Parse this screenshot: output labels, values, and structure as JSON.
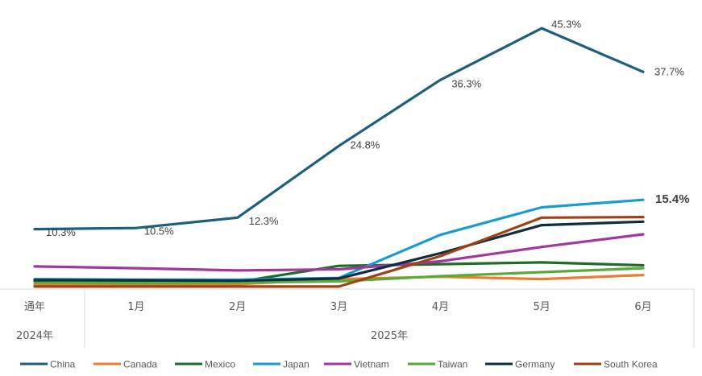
{
  "chart_data": {
    "type": "line",
    "title": "",
    "xlabel": "",
    "ylabel": "",
    "categories": [
      "通年",
      "1月",
      "2月",
      "3月",
      "4月",
      "5月",
      "6月"
    ],
    "category_groups": [
      {
        "label": "2024年",
        "span": [
          "通年"
        ]
      },
      {
        "label": "2025年",
        "span": [
          "1月",
          "2月",
          "3月",
          "4月",
          "5月",
          "6月"
        ]
      }
    ],
    "ylim": [
      0,
      47
    ],
    "grid": false,
    "legend_position": "bottom",
    "series": [
      {
        "name": "China",
        "color": "#1f5f7e",
        "values": [
          10.3,
          10.5,
          12.3,
          24.8,
          36.3,
          45.3,
          37.7
        ],
        "labels": [
          "10.3%",
          "10.5%",
          "12.3%",
          "24.8%",
          "36.3%",
          "45.3%",
          "37.7%"
        ]
      },
      {
        "name": "Canada",
        "color": "#ed7d31",
        "values": [
          0.6,
          0.6,
          0.7,
          1.6,
          2.0,
          1.6,
          2.3
        ]
      },
      {
        "name": "Mexico",
        "color": "#1e6b2a",
        "values": [
          1.2,
          1.1,
          1.1,
          3.9,
          4.2,
          4.5,
          4.0
        ]
      },
      {
        "name": "Japan",
        "color": "#1a9bd1",
        "values": [
          1.6,
          1.5,
          1.5,
          1.8,
          9.3,
          14.1,
          15.4
        ],
        "labels": [
          "",
          "",
          "",
          "",
          "",
          "",
          "15.4%"
        ]
      },
      {
        "name": "Vietnam",
        "color": "#a3379f",
        "values": [
          3.8,
          3.5,
          3.1,
          3.3,
          4.7,
          7.2,
          9.4
        ]
      },
      {
        "name": "Taiwan",
        "color": "#5aaa3a",
        "values": [
          1.0,
          0.9,
          1.0,
          1.2,
          2.1,
          2.8,
          3.5
        ]
      },
      {
        "name": "Germany",
        "color": "#0e2f3f",
        "values": [
          1.4,
          1.4,
          1.3,
          1.7,
          6.1,
          11.0,
          11.6
        ]
      },
      {
        "name": "South Korea",
        "color": "#9e4216",
        "values": [
          0.3,
          0.3,
          0.3,
          0.3,
          5.6,
          12.3,
          12.4
        ]
      }
    ]
  }
}
